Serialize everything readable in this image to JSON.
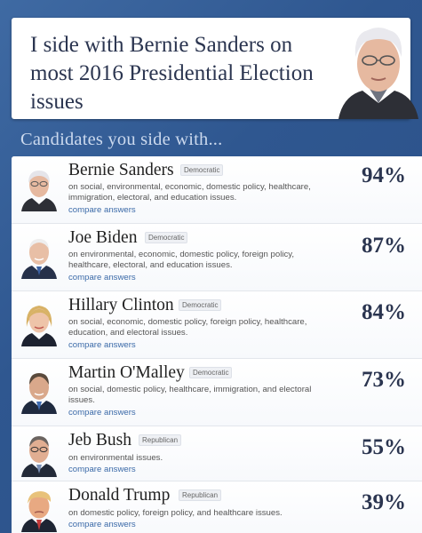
{
  "header": {
    "title": "I side with Bernie Sanders on most 2016 Presidential Election issues"
  },
  "section": {
    "heading": "Candidates you side with..."
  },
  "colors": {
    "background": "#2f5790",
    "accent_text": "#2b3550",
    "link": "#3b6aa8"
  },
  "candidates": [
    {
      "name": "Bernie Sanders",
      "party": "Democratic",
      "percent": "94%",
      "description": "on social, environmental, economic, domestic policy, healthcare, immigration, electoral, and education issues.",
      "compare": "compare answers"
    },
    {
      "name": "Joe Biden",
      "party": "Democratic",
      "percent": "87%",
      "description": "on environmental, economic, domestic policy, foreign policy, healthcare, electoral, and education issues.",
      "compare": "compare answers"
    },
    {
      "name": "Hillary Clinton",
      "party": "Democratic",
      "percent": "84%",
      "description": "on social, economic, domestic policy, foreign policy, healthcare, education, and electoral issues.",
      "compare": "compare answers"
    },
    {
      "name": "Martin O'Malley",
      "party": "Democratic",
      "percent": "73%",
      "description": "on social, domestic policy, healthcare, immigration, and electoral issues.",
      "compare": "compare answers"
    },
    {
      "name": "Jeb Bush",
      "party": "Republican",
      "percent": "55%",
      "description": "on environmental issues.",
      "compare": "compare answers"
    },
    {
      "name": "Donald Trump",
      "party": "Republican",
      "percent": "39%",
      "description": "on domestic policy, foreign policy, and healthcare issues.",
      "compare": "compare answers"
    }
  ]
}
